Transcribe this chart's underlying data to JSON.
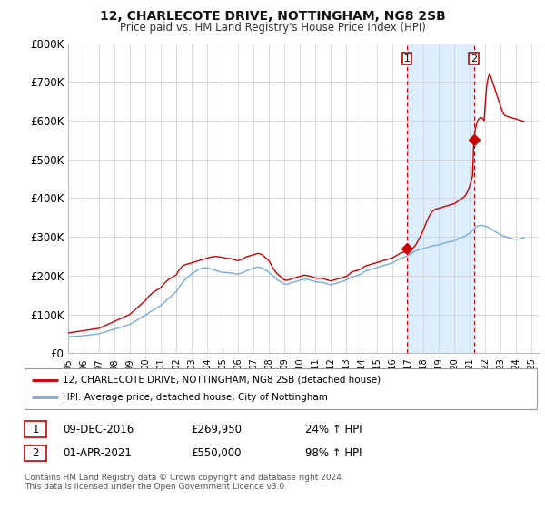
{
  "title": "12, CHARLECOTE DRIVE, NOTTINGHAM, NG8 2SB",
  "subtitle": "Price paid vs. HM Land Registry's House Price Index (HPI)",
  "ylabel_ticks": [
    "£0",
    "£100K",
    "£200K",
    "£300K",
    "£400K",
    "£500K",
    "£600K",
    "£700K",
    "£800K"
  ],
  "ylim": [
    0,
    800000
  ],
  "yticks": [
    0,
    100000,
    200000,
    300000,
    400000,
    500000,
    600000,
    700000,
    800000
  ],
  "xlim_start": 1995.0,
  "xlim_end": 2025.5,
  "background_color": "#ffffff",
  "grid_color": "#cccccc",
  "red_line_color": "#cc0000",
  "blue_line_color": "#7aaadd",
  "shade_color": "#ddeeff",
  "sale1_date_num": 2016.917,
  "sale1_price": 269950,
  "sale1_label": "1",
  "sale2_date_num": 2021.25,
  "sale2_price": 550000,
  "sale2_label": "2",
  "legend_label_red": "12, CHARLECOTE DRIVE, NOTTINGHAM, NG8 2SB (detached house)",
  "legend_label_blue": "HPI: Average price, detached house, City of Nottingham",
  "table_row1": [
    "1",
    "09-DEC-2016",
    "£269,950",
    "24% ↑ HPI"
  ],
  "table_row2": [
    "2",
    "01-APR-2021",
    "£550,000",
    "98% ↑ HPI"
  ],
  "footnote": "Contains HM Land Registry data © Crown copyright and database right 2024.\nThis data is licensed under the Open Government Licence v3.0.",
  "hpi_data_years": [
    1995.0,
    1995.083,
    1995.167,
    1995.25,
    1995.333,
    1995.417,
    1995.5,
    1995.583,
    1995.667,
    1995.75,
    1995.833,
    1995.917,
    1996.0,
    1996.083,
    1996.167,
    1996.25,
    1996.333,
    1996.417,
    1996.5,
    1996.583,
    1996.667,
    1996.75,
    1996.833,
    1996.917,
    1997.0,
    1997.083,
    1997.167,
    1997.25,
    1997.333,
    1997.417,
    1997.5,
    1997.583,
    1997.667,
    1997.75,
    1997.833,
    1997.917,
    1998.0,
    1998.083,
    1998.167,
    1998.25,
    1998.333,
    1998.417,
    1998.5,
    1998.583,
    1998.667,
    1998.75,
    1998.833,
    1998.917,
    1999.0,
    1999.083,
    1999.167,
    1999.25,
    1999.333,
    1999.417,
    1999.5,
    1999.583,
    1999.667,
    1999.75,
    1999.833,
    1999.917,
    2000.0,
    2000.083,
    2000.167,
    2000.25,
    2000.333,
    2000.417,
    2000.5,
    2000.583,
    2000.667,
    2000.75,
    2000.833,
    2000.917,
    2001.0,
    2001.083,
    2001.167,
    2001.25,
    2001.333,
    2001.417,
    2001.5,
    2001.583,
    2001.667,
    2001.75,
    2001.833,
    2001.917,
    2002.0,
    2002.083,
    2002.167,
    2002.25,
    2002.333,
    2002.417,
    2002.5,
    2002.583,
    2002.667,
    2002.75,
    2002.833,
    2002.917,
    2003.0,
    2003.083,
    2003.167,
    2003.25,
    2003.333,
    2003.417,
    2003.5,
    2003.583,
    2003.667,
    2003.75,
    2003.833,
    2003.917,
    2004.0,
    2004.083,
    2004.167,
    2004.25,
    2004.333,
    2004.417,
    2004.5,
    2004.583,
    2004.667,
    2004.75,
    2004.833,
    2004.917,
    2005.0,
    2005.083,
    2005.167,
    2005.25,
    2005.333,
    2005.417,
    2005.5,
    2005.583,
    2005.667,
    2005.75,
    2005.833,
    2005.917,
    2006.0,
    2006.083,
    2006.167,
    2006.25,
    2006.333,
    2006.417,
    2006.5,
    2006.583,
    2006.667,
    2006.75,
    2006.833,
    2006.917,
    2007.0,
    2007.083,
    2007.167,
    2007.25,
    2007.333,
    2007.417,
    2007.5,
    2007.583,
    2007.667,
    2007.75,
    2007.833,
    2007.917,
    2008.0,
    2008.083,
    2008.167,
    2008.25,
    2008.333,
    2008.417,
    2008.5,
    2008.583,
    2008.667,
    2008.75,
    2008.833,
    2008.917,
    2009.0,
    2009.083,
    2009.167,
    2009.25,
    2009.333,
    2009.417,
    2009.5,
    2009.583,
    2009.667,
    2009.75,
    2009.833,
    2009.917,
    2010.0,
    2010.083,
    2010.167,
    2010.25,
    2010.333,
    2010.417,
    2010.5,
    2010.583,
    2010.667,
    2010.75,
    2010.833,
    2010.917,
    2011.0,
    2011.083,
    2011.167,
    2011.25,
    2011.333,
    2011.417,
    2011.5,
    2011.583,
    2011.667,
    2011.75,
    2011.833,
    2011.917,
    2012.0,
    2012.083,
    2012.167,
    2012.25,
    2012.333,
    2012.417,
    2012.5,
    2012.583,
    2012.667,
    2012.75,
    2012.833,
    2012.917,
    2013.0,
    2013.083,
    2013.167,
    2013.25,
    2013.333,
    2013.417,
    2013.5,
    2013.583,
    2013.667,
    2013.75,
    2013.833,
    2013.917,
    2014.0,
    2014.083,
    2014.167,
    2014.25,
    2014.333,
    2014.417,
    2014.5,
    2014.583,
    2014.667,
    2014.75,
    2014.833,
    2014.917,
    2015.0,
    2015.083,
    2015.167,
    2015.25,
    2015.333,
    2015.417,
    2015.5,
    2015.583,
    2015.667,
    2015.75,
    2015.833,
    2015.917,
    2016.0,
    2016.083,
    2016.167,
    2016.25,
    2016.333,
    2016.417,
    2016.5,
    2016.583,
    2016.667,
    2016.75,
    2016.833,
    2016.917,
    2017.0,
    2017.083,
    2017.167,
    2017.25,
    2017.333,
    2017.417,
    2017.5,
    2017.583,
    2017.667,
    2017.75,
    2017.833,
    2017.917,
    2018.0,
    2018.083,
    2018.167,
    2018.25,
    2018.333,
    2018.417,
    2018.5,
    2018.583,
    2018.667,
    2018.75,
    2018.833,
    2018.917,
    2019.0,
    2019.083,
    2019.167,
    2019.25,
    2019.333,
    2019.417,
    2019.5,
    2019.583,
    2019.667,
    2019.75,
    2019.833,
    2019.917,
    2020.0,
    2020.083,
    2020.167,
    2020.25,
    2020.333,
    2020.417,
    2020.5,
    2020.583,
    2020.667,
    2020.75,
    2020.833,
    2020.917,
    2021.0,
    2021.083,
    2021.167,
    2021.25,
    2021.333,
    2021.417,
    2021.5,
    2021.583,
    2021.667,
    2021.75,
    2021.833,
    2021.917,
    2022.0,
    2022.083,
    2022.167,
    2022.25,
    2022.333,
    2022.417,
    2022.5,
    2022.583,
    2022.667,
    2022.75,
    2022.833,
    2022.917,
    2023.0,
    2023.083,
    2023.167,
    2023.25,
    2023.333,
    2023.417,
    2023.5,
    2023.583,
    2023.667,
    2023.75,
    2023.833,
    2023.917,
    2024.0,
    2024.083,
    2024.167,
    2024.25,
    2024.333,
    2024.417,
    2024.5
  ],
  "hpi_data_values": [
    42000,
    42200,
    42400,
    42600,
    42800,
    43000,
    43200,
    43500,
    43800,
    44000,
    44200,
    44500,
    44800,
    45200,
    45600,
    46000,
    46400,
    46800,
    47200,
    47600,
    48000,
    48500,
    49000,
    49500,
    50000,
    51000,
    52000,
    53000,
    54000,
    55000,
    56000,
    57000,
    58000,
    59000,
    60000,
    61000,
    62000,
    63000,
    64000,
    65000,
    66000,
    67000,
    68000,
    69000,
    70000,
    71000,
    72000,
    73000,
    74000,
    76000,
    78000,
    80000,
    82000,
    84000,
    86000,
    88000,
    90000,
    92000,
    94000,
    96000,
    98000,
    100000,
    102000,
    105000,
    107000,
    109000,
    111000,
    113000,
    115000,
    117000,
    119000,
    121000,
    123000,
    126000,
    129000,
    132000,
    135000,
    138000,
    141000,
    144000,
    147000,
    150000,
    153000,
    156000,
    159000,
    164000,
    169000,
    174000,
    179000,
    183000,
    187000,
    190000,
    193000,
    196000,
    199000,
    202000,
    205000,
    207000,
    209000,
    211000,
    213000,
    215000,
    217000,
    218000,
    219000,
    220000,
    220000,
    220000,
    220000,
    219000,
    218000,
    217000,
    216000,
    215000,
    214000,
    213000,
    212000,
    211000,
    210000,
    209000,
    208000,
    208000,
    208000,
    208000,
    208000,
    207000,
    207000,
    206000,
    206000,
    205000,
    204000,
    204000,
    204000,
    205000,
    206000,
    207000,
    208000,
    210000,
    212000,
    213000,
    215000,
    216000,
    217000,
    218000,
    219000,
    220000,
    221000,
    222000,
    222000,
    221000,
    220000,
    219000,
    217000,
    215000,
    213000,
    211000,
    208000,
    205000,
    202000,
    199000,
    196000,
    193000,
    190000,
    188000,
    186000,
    184000,
    182000,
    180000,
    178000,
    178000,
    178000,
    179000,
    180000,
    181000,
    182000,
    183000,
    184000,
    185000,
    186000,
    187000,
    188000,
    189000,
    189000,
    190000,
    190000,
    190000,
    190000,
    189000,
    188000,
    187000,
    186000,
    185000,
    184000,
    183000,
    183000,
    183000,
    183000,
    183000,
    182000,
    181000,
    180000,
    179000,
    178000,
    177000,
    176000,
    177000,
    178000,
    179000,
    180000,
    181000,
    182000,
    183000,
    184000,
    185000,
    186000,
    187000,
    188000,
    190000,
    192000,
    194000,
    196000,
    197000,
    198000,
    199000,
    200000,
    201000,
    202000,
    204000,
    206000,
    208000,
    210000,
    212000,
    213000,
    214000,
    215000,
    216000,
    217000,
    218000,
    219000,
    220000,
    221000,
    222000,
    223000,
    224000,
    225000,
    226000,
    227000,
    228000,
    229000,
    230000,
    231000,
    232000,
    233000,
    235000,
    237000,
    239000,
    241000,
    243000,
    245000,
    246000,
    247000,
    248000,
    249000,
    250000,
    252000,
    254000,
    256000,
    258000,
    260000,
    262000,
    264000,
    265000,
    266000,
    267000,
    268000,
    269000,
    270000,
    271000,
    272000,
    273000,
    274000,
    275000,
    276000,
    277000,
    277000,
    278000,
    278000,
    279000,
    280000,
    281000,
    282000,
    283000,
    284000,
    285000,
    286000,
    287000,
    287000,
    288000,
    288000,
    289000,
    290000,
    291000,
    293000,
    295000,
    297000,
    298000,
    299000,
    300000,
    302000,
    304000,
    306000,
    308000,
    310000,
    313000,
    316000,
    320000,
    323000,
    326000,
    328000,
    329000,
    330000,
    330000,
    329000,
    328000,
    327000,
    326000,
    325000,
    323000,
    321000,
    319000,
    317000,
    315000,
    313000,
    311000,
    309000,
    307000,
    305000,
    303000,
    302000,
    301000,
    300000,
    299000,
    298000,
    297000,
    296000,
    295000,
    294000,
    294000,
    294000,
    294000,
    294000,
    295000,
    296000,
    297000,
    298000
  ],
  "red_data_years": [
    1995.0,
    1995.083,
    1995.167,
    1995.25,
    1995.333,
    1995.417,
    1995.5,
    1995.583,
    1995.667,
    1995.75,
    1995.833,
    1995.917,
    1996.0,
    1996.083,
    1996.167,
    1996.25,
    1996.333,
    1996.417,
    1996.5,
    1996.583,
    1996.667,
    1996.75,
    1996.833,
    1996.917,
    1997.0,
    1997.083,
    1997.167,
    1997.25,
    1997.333,
    1997.417,
    1997.5,
    1997.583,
    1997.667,
    1997.75,
    1997.833,
    1997.917,
    1998.0,
    1998.083,
    1998.167,
    1998.25,
    1998.333,
    1998.417,
    1998.5,
    1998.583,
    1998.667,
    1998.75,
    1998.833,
    1998.917,
    1999.0,
    1999.083,
    1999.167,
    1999.25,
    1999.333,
    1999.417,
    1999.5,
    1999.583,
    1999.667,
    1999.75,
    1999.833,
    1999.917,
    2000.0,
    2000.083,
    2000.167,
    2000.25,
    2000.333,
    2000.417,
    2000.5,
    2000.583,
    2000.667,
    2000.75,
    2000.833,
    2000.917,
    2001.0,
    2001.083,
    2001.167,
    2001.25,
    2001.333,
    2001.417,
    2001.5,
    2001.583,
    2001.667,
    2001.75,
    2001.833,
    2001.917,
    2002.0,
    2002.083,
    2002.167,
    2002.25,
    2002.333,
    2002.417,
    2002.5,
    2002.583,
    2002.667,
    2002.75,
    2002.833,
    2002.917,
    2003.0,
    2003.083,
    2003.167,
    2003.25,
    2003.333,
    2003.417,
    2003.5,
    2003.583,
    2003.667,
    2003.75,
    2003.833,
    2003.917,
    2004.0,
    2004.083,
    2004.167,
    2004.25,
    2004.333,
    2004.417,
    2004.5,
    2004.583,
    2004.667,
    2004.75,
    2004.833,
    2004.917,
    2005.0,
    2005.083,
    2005.167,
    2005.25,
    2005.333,
    2005.417,
    2005.5,
    2005.583,
    2005.667,
    2005.75,
    2005.833,
    2005.917,
    2006.0,
    2006.083,
    2006.167,
    2006.25,
    2006.333,
    2006.417,
    2006.5,
    2006.583,
    2006.667,
    2006.75,
    2006.833,
    2006.917,
    2007.0,
    2007.083,
    2007.167,
    2007.25,
    2007.333,
    2007.417,
    2007.5,
    2007.583,
    2007.667,
    2007.75,
    2007.833,
    2007.917,
    2008.0,
    2008.083,
    2008.167,
    2008.25,
    2008.333,
    2008.417,
    2008.5,
    2008.583,
    2008.667,
    2008.75,
    2008.833,
    2008.917,
    2009.0,
    2009.083,
    2009.167,
    2009.25,
    2009.333,
    2009.417,
    2009.5,
    2009.583,
    2009.667,
    2009.75,
    2009.833,
    2009.917,
    2010.0,
    2010.083,
    2010.167,
    2010.25,
    2010.333,
    2010.417,
    2010.5,
    2010.583,
    2010.667,
    2010.75,
    2010.833,
    2010.917,
    2011.0,
    2011.083,
    2011.167,
    2011.25,
    2011.333,
    2011.417,
    2011.5,
    2011.583,
    2011.667,
    2011.75,
    2011.833,
    2011.917,
    2012.0,
    2012.083,
    2012.167,
    2012.25,
    2012.333,
    2012.417,
    2012.5,
    2012.583,
    2012.667,
    2012.75,
    2012.833,
    2012.917,
    2013.0,
    2013.083,
    2013.167,
    2013.25,
    2013.333,
    2013.417,
    2013.5,
    2013.583,
    2013.667,
    2013.75,
    2013.833,
    2013.917,
    2014.0,
    2014.083,
    2014.167,
    2014.25,
    2014.333,
    2014.417,
    2014.5,
    2014.583,
    2014.667,
    2014.75,
    2014.833,
    2014.917,
    2015.0,
    2015.083,
    2015.167,
    2015.25,
    2015.333,
    2015.417,
    2015.5,
    2015.583,
    2015.667,
    2015.75,
    2015.833,
    2015.917,
    2016.0,
    2016.083,
    2016.167,
    2016.25,
    2016.333,
    2016.417,
    2016.5,
    2016.583,
    2016.667,
    2016.75,
    2016.833,
    2016.917,
    2017.0,
    2017.083,
    2017.167,
    2017.25,
    2017.333,
    2017.417,
    2017.5,
    2017.583,
    2017.667,
    2017.75,
    2017.833,
    2017.917,
    2018.0,
    2018.083,
    2018.167,
    2018.25,
    2018.333,
    2018.417,
    2018.5,
    2018.583,
    2018.667,
    2018.75,
    2018.833,
    2018.917,
    2019.0,
    2019.083,
    2019.167,
    2019.25,
    2019.333,
    2019.417,
    2019.5,
    2019.583,
    2019.667,
    2019.75,
    2019.833,
    2019.917,
    2020.0,
    2020.083,
    2020.167,
    2020.25,
    2020.333,
    2020.417,
    2020.5,
    2020.583,
    2020.667,
    2020.75,
    2020.833,
    2020.917,
    2021.0,
    2021.083,
    2021.167,
    2021.25,
    2021.333,
    2021.417,
    2021.5,
    2021.583,
    2021.667,
    2021.75,
    2021.833,
    2021.917,
    2022.0,
    2022.083,
    2022.167,
    2022.25,
    2022.333,
    2022.417,
    2022.5,
    2022.583,
    2022.667,
    2022.75,
    2022.833,
    2022.917,
    2023.0,
    2023.083,
    2023.167,
    2023.25,
    2023.333,
    2023.417,
    2023.5,
    2023.583,
    2023.667,
    2023.75,
    2023.833,
    2023.917,
    2024.0,
    2024.083,
    2024.167,
    2024.25,
    2024.333,
    2024.417,
    2024.5
  ],
  "red_data_values": [
    52000,
    52500,
    53000,
    53500,
    54000,
    54500,
    55000,
    55500,
    56000,
    56500,
    57000,
    57500,
    58000,
    58500,
    59000,
    59500,
    60000,
    60500,
    61000,
    61500,
    62000,
    62500,
    63000,
    63500,
    64000,
    65500,
    67000,
    68500,
    70000,
    71500,
    73000,
    74500,
    76000,
    77500,
    79000,
    80500,
    82000,
    83500,
    85000,
    86500,
    88000,
    89500,
    91000,
    92500,
    94000,
    95500,
    97000,
    98500,
    100000,
    103000,
    106000,
    109000,
    112000,
    115000,
    118000,
    121000,
    124000,
    127000,
    130000,
    133000,
    136000,
    140000,
    144000,
    148000,
    151000,
    154000,
    157000,
    159000,
    161000,
    163000,
    165000,
    167000,
    169000,
    173000,
    177000,
    181000,
    184000,
    187000,
    190000,
    192000,
    194000,
    196000,
    198000,
    200000,
    202000,
    208000,
    214000,
    218000,
    222000,
    225000,
    227000,
    228000,
    229000,
    230000,
    231000,
    232000,
    233000,
    234000,
    235000,
    236000,
    237000,
    238000,
    239000,
    240000,
    241000,
    242000,
    243000,
    244000,
    245000,
    246000,
    247000,
    248000,
    248500,
    249000,
    249000,
    249000,
    249000,
    248500,
    248000,
    247500,
    247000,
    246000,
    245500,
    245000,
    244500,
    244000,
    244000,
    243000,
    242000,
    241000,
    240000,
    239000,
    239000,
    240000,
    241000,
    242000,
    244000,
    246000,
    248000,
    249000,
    250000,
    251000,
    252000,
    253000,
    254000,
    255000,
    256000,
    257000,
    257000,
    256000,
    255000,
    253000,
    250000,
    247000,
    244000,
    241000,
    238000,
    232000,
    226000,
    220000,
    215000,
    210000,
    206000,
    203000,
    200000,
    197000,
    194000,
    191000,
    188000,
    188000,
    188000,
    189000,
    190000,
    191000,
    192000,
    193000,
    194000,
    195000,
    196000,
    197000,
    198000,
    199000,
    200000,
    201000,
    201000,
    200000,
    200000,
    199000,
    198000,
    197000,
    196000,
    195000,
    194000,
    193000,
    193000,
    193000,
    193000,
    193000,
    192000,
    191000,
    190000,
    189000,
    188000,
    187000,
    186000,
    187000,
    188000,
    189000,
    190000,
    191000,
    192000,
    193000,
    194000,
    195000,
    196000,
    197000,
    198000,
    200000,
    203000,
    206000,
    209000,
    210000,
    211000,
    212000,
    213000,
    214000,
    215000,
    217000,
    219000,
    221000,
    223000,
    225000,
    226000,
    227000,
    228000,
    229000,
    230000,
    231000,
    232000,
    233000,
    234000,
    235000,
    236000,
    237000,
    238000,
    239000,
    240000,
    241000,
    242000,
    243000,
    244000,
    245000,
    246000,
    248000,
    250000,
    252000,
    254000,
    256000,
    258000,
    259000,
    260000,
    261000,
    262000,
    263000,
    265000,
    267000,
    269000,
    269950,
    272000,
    275000,
    280000,
    286000,
    292000,
    298000,
    305000,
    312000,
    320000,
    328000,
    336000,
    344000,
    351000,
    357000,
    362000,
    366000,
    369000,
    371000,
    372000,
    373000,
    374000,
    375000,
    376000,
    377000,
    378000,
    379000,
    380000,
    381000,
    382000,
    383000,
    384000,
    385000,
    386000,
    388000,
    390000,
    393000,
    396000,
    398000,
    400000,
    402000,
    405000,
    410000,
    416000,
    424000,
    434000,
    445000,
    458000,
    550000,
    575000,
    590000,
    600000,
    605000,
    608000,
    608000,
    605000,
    600000,
    650000,
    690000,
    710000,
    720000,
    715000,
    705000,
    695000,
    685000,
    675000,
    665000,
    655000,
    645000,
    635000,
    625000,
    618000,
    614000,
    612000,
    611000,
    610000,
    609000,
    608000,
    607000,
    606000,
    605000,
    604000,
    603000,
    602000,
    601000,
    600000,
    599000,
    598000
  ]
}
